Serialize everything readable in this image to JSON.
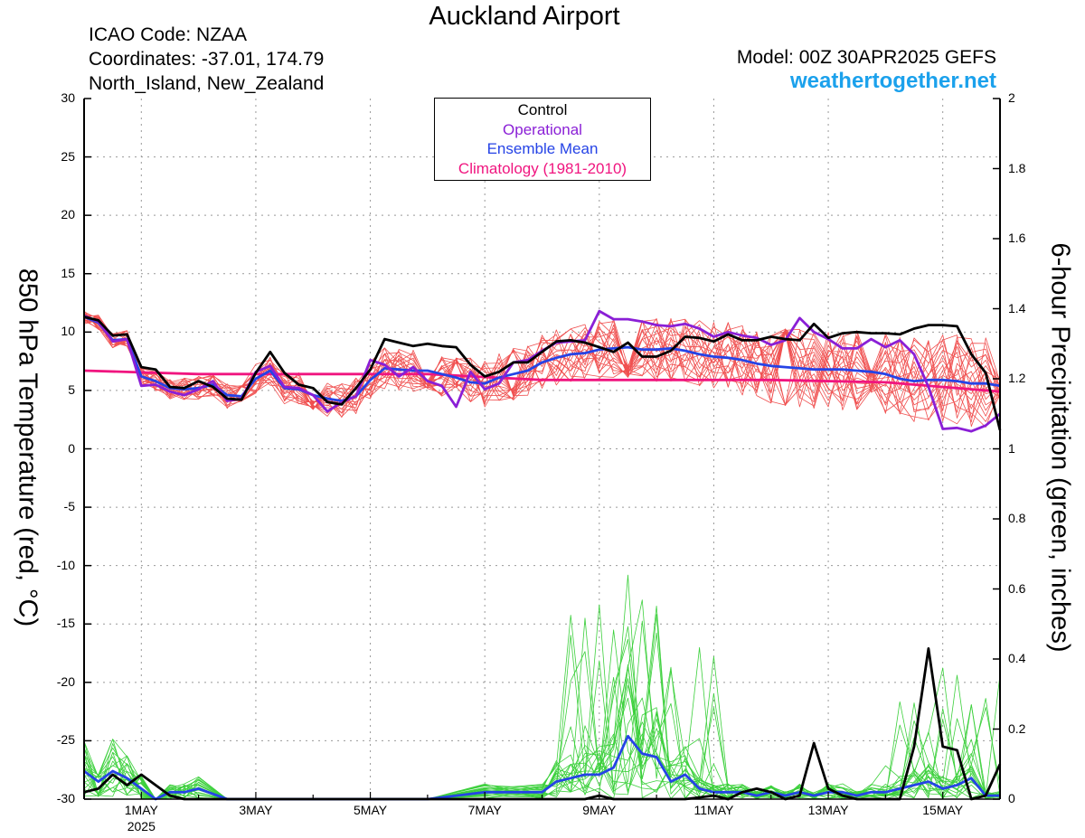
{
  "header": {
    "title": "Auckland Airport",
    "icao": "ICAO Code: NZAA",
    "coordinates": "Coordinates: -37.01, 174.79",
    "region": "North_Island, New_Zealand",
    "model": "Model: 00Z 30APR2025 GEFS",
    "website": "weathertogether.net"
  },
  "legend": {
    "control": "Control",
    "operational": "Operational",
    "ensemble_mean": "Ensemble Mean",
    "climatology": "Climatology (1981-2010)"
  },
  "colors": {
    "control": "#000000",
    "operational": "#8a1fd6",
    "ensemble_mean": "#2543e6",
    "climatology": "#f0157f",
    "members_temp": "#f05050",
    "members_precip": "#3cd03c",
    "website": "#1ba1ec"
  },
  "chart_data": {
    "type": "line",
    "ylabel_left": "850 hPa Temperature (red, °C)",
    "ylabel_right": "6-hour Precipitation (green, inches)",
    "ylim_left": [
      -30,
      30
    ],
    "ylim_right": [
      0,
      2
    ],
    "yticks_left": [
      "30",
      "25",
      "20",
      "15",
      "10",
      "5",
      "0",
      "-5",
      "-10",
      "-15",
      "-20",
      "-25",
      "-30"
    ],
    "yticks_right": [
      "2",
      "1.8",
      "1.6",
      "1.4",
      "1.2",
      "1",
      "0.8",
      "0.6",
      "0.4",
      "0.2",
      "0"
    ],
    "xlim_days": [
      0,
      16
    ],
    "xticks": [
      {
        "label": "1MAY",
        "sub": "2025",
        "day": 1
      },
      {
        "label": "3MAY",
        "sub": "",
        "day": 3
      },
      {
        "label": "5MAY",
        "sub": "",
        "day": 5
      },
      {
        "label": "7MAY",
        "sub": "",
        "day": 7
      },
      {
        "label": "9MAY",
        "sub": "",
        "day": 9
      },
      {
        "label": "11MAY",
        "sub": "",
        "day": 11
      },
      {
        "label": "13MAY",
        "sub": "",
        "day": 13
      },
      {
        "label": "15MAY",
        "sub": "",
        "day": 15
      }
    ],
    "grid": true,
    "temperature": {
      "control": {
        "x": [
          0,
          0.25,
          0.5,
          0.75,
          1,
          1.25,
          1.5,
          1.75,
          2,
          2.25,
          2.5,
          2.75,
          3,
          3.25,
          3.5,
          3.75,
          4,
          4.25,
          4.5,
          4.75,
          5,
          5.25,
          5.5,
          5.75,
          6,
          6.25,
          6.5,
          6.75,
          7,
          7.25,
          7.5,
          7.75,
          8,
          8.25,
          8.5,
          8.75,
          9,
          9.25,
          9.5,
          9.75,
          10,
          10.25,
          10.5,
          10.75,
          11,
          11.25,
          11.5,
          11.75,
          12,
          12.25,
          12.5,
          12.75,
          13,
          13.25,
          13.5,
          13.75,
          14,
          14.25,
          14.5,
          14.75,
          15,
          15.25,
          15.5,
          15.75,
          16
        ],
        "y": [
          11.3,
          11,
          9.7,
          9.8,
          7,
          6.8,
          5.3,
          5.2,
          5.8,
          5.3,
          4.3,
          4.2,
          6.5,
          8.3,
          6.5,
          5.5,
          5.2,
          4,
          3.8,
          5.2,
          6.8,
          9.4,
          9.1,
          8.8,
          9,
          8.8,
          8.7,
          7.2,
          6.2,
          6.6,
          7.4,
          7.4,
          8.3,
          9.2,
          9.3,
          9.1,
          8.7,
          8.3,
          9.1,
          7.9,
          7.9,
          8.4,
          9.6,
          9.5,
          9.2,
          9.8,
          9.3,
          9.3,
          9.6,
          9.4,
          9.3,
          10.7,
          9.5,
          9.9,
          10,
          9.9,
          9.9,
          9.8,
          10.3,
          10.6,
          10.6,
          10.5,
          8.1,
          6.5,
          1.6
        ]
      },
      "operational": {
        "x": [
          0,
          0.25,
          0.5,
          0.75,
          1,
          1.25,
          1.5,
          1.75,
          2,
          2.25,
          2.5,
          2.75,
          3,
          3.25,
          3.5,
          3.75,
          4,
          4.25,
          4.5,
          4.75,
          5,
          5.25,
          5.5,
          5.75,
          6,
          6.25,
          6.5,
          6.75,
          7,
          7.25,
          7.5,
          7.75,
          8,
          8.25,
          8.5,
          8.75,
          9,
          9.25,
          9.5,
          9.75,
          10,
          10.25,
          10.5,
          10.75,
          11,
          11.25,
          11.5,
          11.75,
          12,
          12.25,
          12.5,
          12.75,
          13,
          13.25,
          13.5,
          13.75,
          14,
          14.25,
          14.5,
          14.75,
          15,
          15.25,
          15.5,
          15.75,
          16
        ],
        "y": [
          11.4,
          10.9,
          9.2,
          9.4,
          5.4,
          5.5,
          4.9,
          4.6,
          5.1,
          5.8,
          4.1,
          4.3,
          6.6,
          7.1,
          5.3,
          5.2,
          4.6,
          3.2,
          4,
          4.5,
          7.6,
          7.2,
          6.2,
          7,
          5.8,
          5.4,
          3.6,
          6.6,
          5.1,
          5.6,
          7.4,
          7.6,
          8.4,
          9.1,
          9.2,
          9.3,
          11.8,
          11.1,
          11.1,
          10.9,
          10.6,
          10.5,
          10.7,
          10.3,
          9.6,
          10,
          9.7,
          9.5,
          8.9,
          9.3,
          11.2,
          10,
          9.4,
          8.6,
          8.6,
          9.4,
          8.7,
          9.3,
          8.1,
          5.3,
          1.7,
          1.8,
          1.5,
          2,
          3
        ]
      },
      "ensemble_mean": {
        "x": [
          0,
          0.25,
          0.5,
          0.75,
          1,
          1.25,
          1.5,
          1.75,
          2,
          2.25,
          2.5,
          2.75,
          3,
          3.25,
          3.5,
          3.75,
          4,
          4.25,
          4.5,
          4.75,
          5,
          5.25,
          5.5,
          5.75,
          6,
          6.25,
          6.5,
          6.75,
          7,
          7.25,
          7.5,
          7.75,
          8,
          8.25,
          8.5,
          8.75,
          9,
          9.25,
          9.5,
          9.75,
          10,
          10.25,
          10.5,
          10.75,
          11,
          11.25,
          11.5,
          11.75,
          12,
          12.25,
          12.5,
          12.75,
          13,
          13.25,
          13.5,
          13.75,
          14,
          14.25,
          14.5,
          14.75,
          15,
          15.25,
          15.5,
          15.75,
          16
        ],
        "y": [
          11.3,
          10.8,
          9.3,
          9.4,
          6.2,
          5.8,
          5.2,
          5.1,
          5.2,
          5.5,
          4.6,
          4.5,
          6,
          6.7,
          5.2,
          5.1,
          4.6,
          4.3,
          4.1,
          4.5,
          5.9,
          6.9,
          6.8,
          6.7,
          6.7,
          6.4,
          6.1,
          5.7,
          5.6,
          6.1,
          6.4,
          6.7,
          7.4,
          7.8,
          8.1,
          8.2,
          8.5,
          8.6,
          8.7,
          8.5,
          8.5,
          8.6,
          8.4,
          8.1,
          7.9,
          7.8,
          7.6,
          7.3,
          7.1,
          7,
          6.9,
          6.8,
          6.8,
          6.8,
          6.7,
          6.6,
          6.4,
          6,
          5.8,
          5.9,
          5.9,
          5.8,
          5.6,
          5.6,
          5.4
        ]
      },
      "climatology": {
        "x": [
          0,
          2,
          4,
          6,
          8,
          10,
          12,
          14,
          16
        ],
        "y": [
          6.7,
          6.4,
          6.4,
          6.4,
          5.9,
          5.9,
          5.9,
          5.7,
          4.9
        ]
      }
    },
    "precipitation": {
      "control": {
        "x": [
          0,
          0.25,
          0.5,
          0.75,
          1,
          1.25,
          1.5,
          1.75,
          2,
          2.5,
          3,
          4,
          5,
          6,
          7,
          8,
          8.75,
          9,
          9.25,
          9.5,
          10,
          10.5,
          11,
          11.25,
          11.5,
          11.75,
          12,
          12.25,
          12.5,
          12.75,
          13,
          13.25,
          13.5,
          14,
          14.25,
          14.5,
          14.75,
          15,
          15.25,
          15.5,
          15.75,
          16
        ],
        "y": [
          0.02,
          0.03,
          0.07,
          0.04,
          0.07,
          0.04,
          0.01,
          0,
          0,
          0,
          0,
          0,
          0,
          0,
          0,
          0,
          0,
          0.01,
          0,
          0,
          0,
          0,
          0.01,
          0,
          0.02,
          0.03,
          0.02,
          0,
          0.01,
          0.16,
          0.03,
          0.01,
          0,
          0,
          0,
          0.15,
          0.43,
          0.15,
          0.14,
          0,
          0.01,
          0.1
        ]
      },
      "ensemble_mean": {
        "x": [
          0,
          0.25,
          0.5,
          0.75,
          1,
          1.25,
          1.5,
          1.75,
          2,
          2.5,
          3,
          4,
          5,
          6,
          7,
          8,
          8.25,
          8.5,
          8.75,
          9,
          9.25,
          9.5,
          9.75,
          10,
          10.25,
          10.5,
          10.75,
          11,
          11.25,
          11.5,
          11.75,
          12,
          12.25,
          12.5,
          12.75,
          13,
          13.25,
          13.5,
          13.75,
          14,
          14.25,
          14.5,
          14.75,
          15,
          15.25,
          15.5,
          15.75,
          16
        ],
        "y": [
          0.08,
          0.05,
          0.08,
          0.06,
          0.03,
          0,
          0.02,
          0.02,
          0.03,
          0,
          0,
          0,
          0,
          0,
          0.02,
          0.02,
          0.05,
          0.06,
          0.07,
          0.07,
          0.09,
          0.18,
          0.13,
          0.12,
          0.05,
          0.07,
          0.03,
          0.02,
          0.02,
          0.02,
          0.01,
          0.02,
          0.01,
          0.02,
          0.01,
          0.02,
          0.02,
          0.01,
          0.02,
          0.02,
          0.03,
          0.04,
          0.05,
          0.03,
          0.04,
          0.06,
          0.01,
          0.01
        ]
      }
    }
  }
}
